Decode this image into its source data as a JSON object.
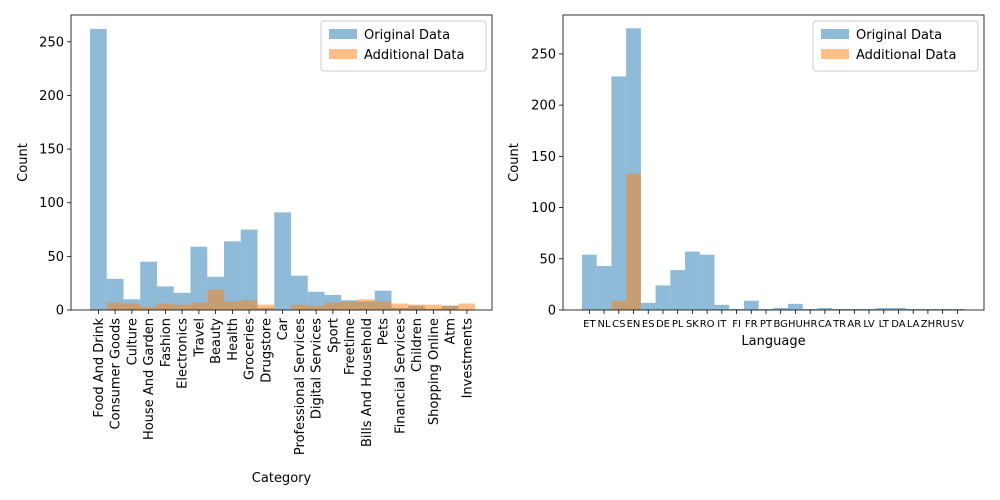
{
  "colors": {
    "original": "#1f77b4",
    "additional": "#ff7f0e",
    "alpha": 0.5
  },
  "chart_data": [
    {
      "type": "bar",
      "title": "",
      "xlabel": "Category",
      "ylabel": "Count",
      "ylim": [
        0,
        275
      ],
      "yticks": [
        0,
        50,
        100,
        150,
        200,
        250
      ],
      "legend_position": "top-right",
      "grid": false,
      "categories": [
        "Food And Drink",
        "Consumer Goods",
        "Culture",
        "House And Garden",
        "Fashion",
        "Electronics",
        "Travel",
        "Beauty",
        "Health",
        "Groceries",
        "Drugstore",
        "Car",
        "Professional Services",
        "Digital Services",
        "Sport",
        "Freetime",
        "Bills And Household",
        "Pets",
        "Financial Services",
        "Children",
        "Shopping Online",
        "Atm",
        "Investments"
      ],
      "series": [
        {
          "name": "Original Data",
          "values": [
            262,
            29,
            10,
            45,
            22,
            16,
            59,
            31,
            64,
            75,
            2,
            91,
            32,
            17,
            14,
            9,
            8,
            18,
            2,
            4,
            1,
            4,
            0
          ]
        },
        {
          "name": "Additional Data",
          "values": [
            0,
            7,
            6,
            3,
            6,
            5,
            7,
            19,
            8,
            9,
            5,
            0,
            5,
            4,
            7,
            8,
            10,
            8,
            6,
            5,
            5,
            4,
            6
          ]
        }
      ]
    },
    {
      "type": "bar",
      "title": "",
      "xlabel": "Language",
      "ylabel": "Count",
      "ylim": [
        0,
        288
      ],
      "yticks": [
        0,
        50,
        100,
        150,
        200,
        250
      ],
      "legend_position": "top-right",
      "grid": false,
      "categories": [
        "ET",
        "NL",
        "CS",
        "EN",
        "ES",
        "DE",
        "PL",
        "SK",
        "RO",
        "IT",
        "FI",
        "FR",
        "PT",
        "BG",
        "HU",
        "HR",
        "CA",
        "TR",
        "AR",
        "LV",
        "LT",
        "DA",
        "LA",
        "ZH",
        "RU",
        "SV"
      ],
      "series": [
        {
          "name": "Original Data",
          "values": [
            54,
            43,
            228,
            275,
            7,
            24,
            39,
            57,
            54,
            5,
            1,
            9,
            1,
            2,
            6,
            1,
            2,
            1,
            1,
            1,
            2,
            2,
            1,
            1,
            1,
            1
          ]
        },
        {
          "name": "Additional Data",
          "values": [
            0,
            0,
            9,
            133,
            0,
            0,
            0,
            0,
            0,
            0,
            0,
            0,
            0,
            0,
            0,
            0,
            0,
            0,
            0,
            0,
            0,
            0,
            0,
            0,
            0,
            0
          ]
        }
      ]
    }
  ]
}
